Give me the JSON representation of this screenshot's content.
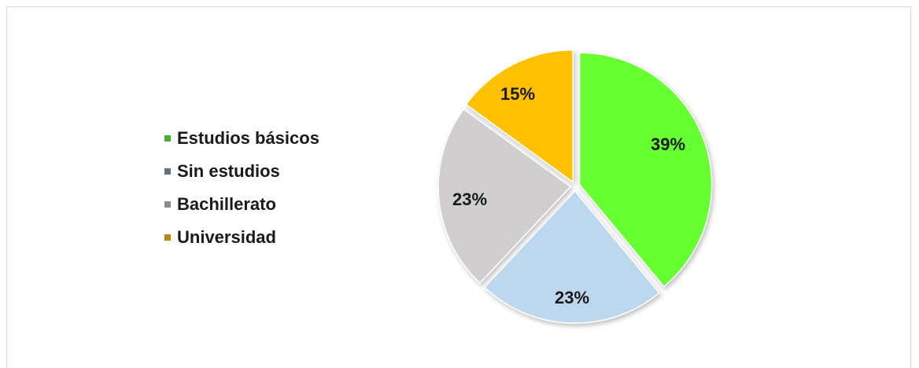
{
  "chart_data": {
    "type": "pie",
    "title": "",
    "legend_position": "left",
    "slices": [
      {
        "label": "Estudios básicos",
        "value": 39,
        "value_label": "39%",
        "color": "#66ff33",
        "legend_color": "#4caf28"
      },
      {
        "label": "Sin estudios",
        "value": 23,
        "value_label": "23%",
        "color": "#bdd7ee",
        "legend_color": "#5f7380"
      },
      {
        "label": "Bachillerato",
        "value": 23,
        "value_label": "23%",
        "color": "#d0cece",
        "legend_color": "#8c8c8c"
      },
      {
        "label": "Universidad",
        "value": 15,
        "value_label": "15%",
        "color": "#ffc000",
        "legend_color": "#b8860b"
      }
    ]
  }
}
